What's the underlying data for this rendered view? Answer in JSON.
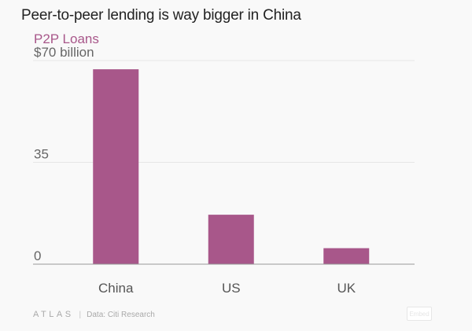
{
  "header": {
    "title": "Peer-to-peer lending is way bigger in China",
    "series_label": "P2P Loans"
  },
  "colors": {
    "bar": "#a8578a",
    "series_label": "#a8578a",
    "gridline": "#e7e7e7",
    "axis": "#999999"
  },
  "chart_data": {
    "type": "bar",
    "title": "Peer-to-peer lending is way bigger in China",
    "categories": [
      "China",
      "US",
      "UK"
    ],
    "series": [
      {
        "name": "P2P Loans",
        "values": [
          67,
          17,
          5.5
        ]
      }
    ],
    "ylim": [
      0,
      70
    ],
    "yticks": [
      {
        "value": 0,
        "label": "0"
      },
      {
        "value": 35,
        "label": "35"
      },
      {
        "value": 70,
        "label": "$70 billion"
      }
    ],
    "xlabel": "",
    "ylabel": "",
    "grid": true
  },
  "footer": {
    "brand": "ATLAS",
    "source": "Data: Citi Research",
    "embed_label": "Embed"
  }
}
